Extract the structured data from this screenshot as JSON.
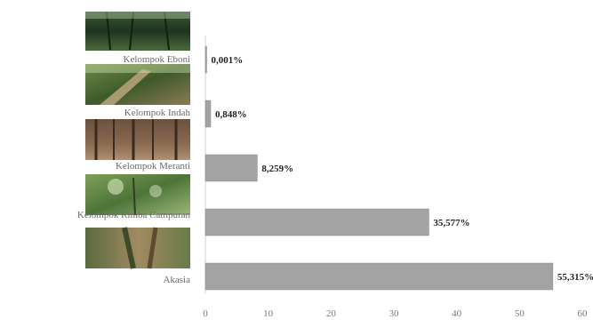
{
  "chart_data": {
    "type": "bar",
    "orientation": "horizontal",
    "categories": [
      "Kelompok Eboni",
      "Kelompok Indah",
      "Kelompok Meranti",
      "Kelompok Rimba Campuran",
      "Akasia"
    ],
    "values": [
      0.001,
      0.848,
      8.259,
      35.577,
      55.315
    ],
    "data_labels": [
      "0,001%",
      "0,848%",
      "8,259%",
      "35,577%",
      "55,315%"
    ],
    "xlim": [
      0,
      60
    ],
    "xticks": [
      0,
      10,
      20,
      30,
      40,
      50,
      60
    ],
    "grid": false,
    "legend": "none",
    "title": "",
    "xlabel": "",
    "ylabel": "",
    "colors": {
      "bar_fill": "#a3a3a3",
      "bar_stroke": "#8a8a8a",
      "axis": "#d0d0d0"
    },
    "category_images": [
      "forest-canopy-photo",
      "fallen-trunk-forest-photo",
      "tree-trunks-forest-photo",
      "green-canopy-forest-photo",
      "tree-bark-trunk-photo"
    ]
  }
}
